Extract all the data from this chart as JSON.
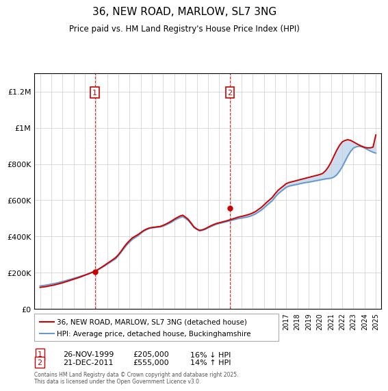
{
  "title": "36, NEW ROAD, MARLOW, SL7 3NG",
  "subtitle": "Price paid vs. HM Land Registry's House Price Index (HPI)",
  "legend_line1": "36, NEW ROAD, MARLOW, SL7 3NG (detached house)",
  "legend_line2": "HPI: Average price, detached house, Buckinghamshire",
  "sale1_label": "1",
  "sale1_date": "26-NOV-1999",
  "sale1_price": "£205,000",
  "sale1_hpi": "16% ↓ HPI",
  "sale1_year": 1999.9,
  "sale1_value": 205000,
  "sale2_label": "2",
  "sale2_date": "21-DEC-2011",
  "sale2_price": "£555,000",
  "sale2_hpi": "14% ↑ HPI",
  "sale2_year": 2011.97,
  "sale2_value": 555000,
  "footnote": "Contains HM Land Registry data © Crown copyright and database right 2025.\nThis data is licensed under the Open Government Licence v3.0.",
  "price_color": "#cc0000",
  "hpi_color": "#6699cc",
  "vline_color": "#cc0000",
  "background_color": "#ccddf0",
  "ylim": [
    0,
    1300000
  ],
  "xlim_start": 1994.5,
  "xlim_end": 2025.5,
  "yticks": [
    0,
    200000,
    400000,
    600000,
    800000,
    1000000,
    1200000
  ],
  "ytick_labels": [
    "£0",
    "£200K",
    "£400K",
    "£600K",
    "£800K",
    "£1M",
    "£1.2M"
  ],
  "years": [
    1995.0,
    1995.25,
    1995.5,
    1995.75,
    1996.0,
    1996.25,
    1996.5,
    1996.75,
    1997.0,
    1997.25,
    1997.5,
    1997.75,
    1998.0,
    1998.25,
    1998.5,
    1998.75,
    1999.0,
    1999.25,
    1999.5,
    1999.75,
    2000.0,
    2000.25,
    2000.5,
    2000.75,
    2001.0,
    2001.25,
    2001.5,
    2001.75,
    2002.0,
    2002.25,
    2002.5,
    2002.75,
    2003.0,
    2003.25,
    2003.5,
    2003.75,
    2004.0,
    2004.25,
    2004.5,
    2004.75,
    2005.0,
    2005.25,
    2005.5,
    2005.75,
    2006.0,
    2006.25,
    2006.5,
    2006.75,
    2007.0,
    2007.25,
    2007.5,
    2007.75,
    2008.0,
    2008.25,
    2008.5,
    2008.75,
    2009.0,
    2009.25,
    2009.5,
    2009.75,
    2010.0,
    2010.25,
    2010.5,
    2010.75,
    2011.0,
    2011.25,
    2011.5,
    2011.75,
    2012.0,
    2012.25,
    2012.5,
    2012.75,
    2013.0,
    2013.25,
    2013.5,
    2013.75,
    2014.0,
    2014.25,
    2014.5,
    2014.75,
    2015.0,
    2015.25,
    2015.5,
    2015.75,
    2016.0,
    2016.25,
    2016.5,
    2016.75,
    2017.0,
    2017.25,
    2017.5,
    2017.75,
    2018.0,
    2018.25,
    2018.5,
    2018.75,
    2019.0,
    2019.25,
    2019.5,
    2019.75,
    2020.0,
    2020.25,
    2020.5,
    2020.75,
    2021.0,
    2021.25,
    2021.5,
    2021.75,
    2022.0,
    2022.25,
    2022.5,
    2022.75,
    2023.0,
    2023.25,
    2023.5,
    2023.75,
    2024.0,
    2024.25,
    2024.5,
    2024.75,
    2025.0
  ],
  "hpi_values": [
    128000,
    130000,
    132000,
    135000,
    138000,
    141000,
    144000,
    148000,
    152000,
    156000,
    161000,
    165000,
    170000,
    174000,
    179000,
    184000,
    188000,
    193000,
    199000,
    205000,
    211000,
    220000,
    229000,
    238000,
    248000,
    258000,
    268000,
    278000,
    295000,
    315000,
    335000,
    355000,
    370000,
    385000,
    395000,
    405000,
    418000,
    430000,
    438000,
    445000,
    448000,
    450000,
    452000,
    454000,
    458000,
    465000,
    472000,
    480000,
    490000,
    498000,
    505000,
    510000,
    500000,
    488000,
    470000,
    450000,
    440000,
    432000,
    435000,
    440000,
    448000,
    455000,
    462000,
    468000,
    472000,
    476000,
    480000,
    484000,
    488000,
    492000,
    496000,
    500000,
    502000,
    505000,
    508000,
    512000,
    518000,
    525000,
    535000,
    545000,
    558000,
    572000,
    585000,
    598000,
    618000,
    635000,
    648000,
    660000,
    672000,
    678000,
    682000,
    685000,
    688000,
    692000,
    695000,
    698000,
    700000,
    703000,
    706000,
    709000,
    712000,
    715000,
    718000,
    720000,
    722000,
    728000,
    740000,
    760000,
    785000,
    815000,
    845000,
    870000,
    888000,
    895000,
    898000,
    895000,
    888000,
    880000,
    872000,
    865000,
    860000
  ],
  "price_values": [
    120000,
    122000,
    124000,
    127000,
    130000,
    133000,
    137000,
    141000,
    145000,
    150000,
    155000,
    160000,
    165000,
    170000,
    175000,
    181000,
    187000,
    193000,
    199000,
    205000,
    212000,
    221000,
    231000,
    241000,
    252000,
    262000,
    273000,
    284000,
    300000,
    320000,
    342000,
    362000,
    378000,
    393000,
    402000,
    411000,
    422000,
    433000,
    441000,
    447000,
    450000,
    452000,
    454000,
    456000,
    462000,
    469000,
    477000,
    486000,
    496000,
    505000,
    513000,
    518000,
    507000,
    494000,
    474000,
    453000,
    442000,
    434000,
    437000,
    443000,
    451000,
    459000,
    466000,
    472000,
    476000,
    480000,
    484000,
    488000,
    493000,
    498000,
    503000,
    508000,
    511000,
    515000,
    519000,
    524000,
    530000,
    538000,
    549000,
    560000,
    574000,
    589000,
    602000,
    616000,
    636000,
    654000,
    667000,
    679000,
    692000,
    698000,
    702000,
    706000,
    710000,
    714000,
    718000,
    722000,
    726000,
    730000,
    734000,
    738000,
    742000,
    748000,
    762000,
    783000,
    810000,
    843000,
    875000,
    902000,
    922000,
    930000,
    934000,
    930000,
    922000,
    913000,
    905000,
    898000,
    892000,
    889000,
    889000,
    893000,
    960000
  ]
}
